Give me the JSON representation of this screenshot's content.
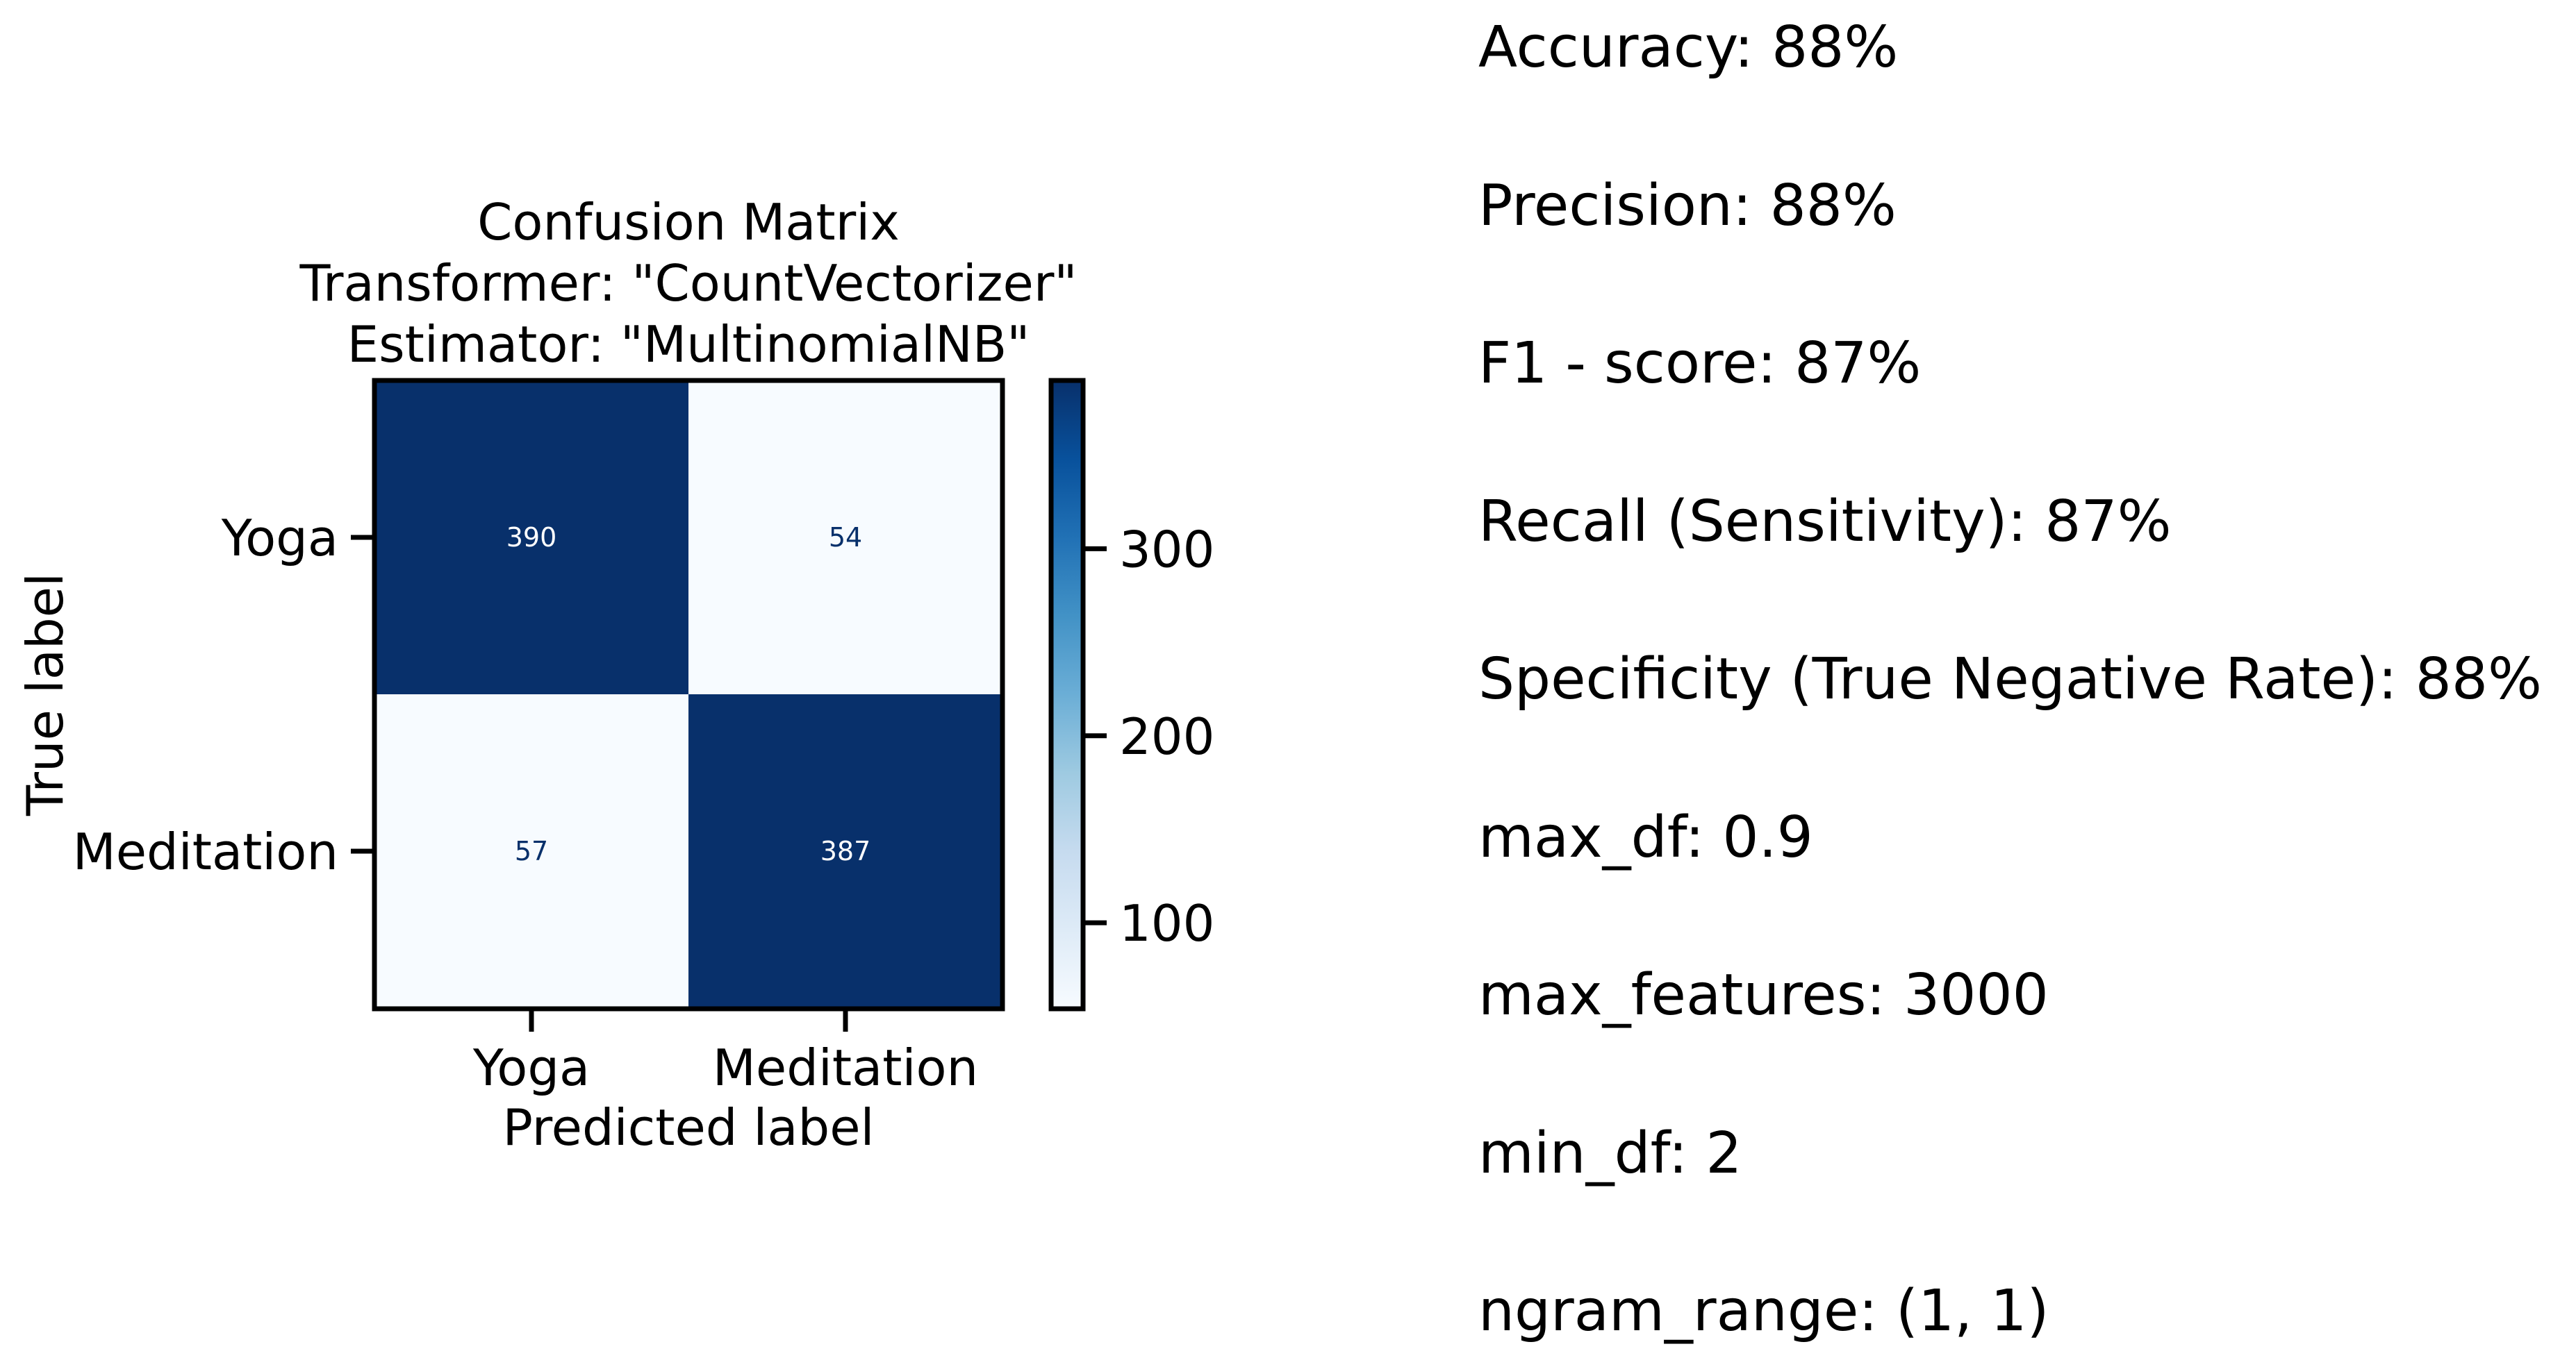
{
  "chart_data": {
    "type": "heatmap",
    "title_lines": [
      "Confusion Matrix",
      "Transformer: \"CountVectorizer\"",
      "Estimator: \"MultinomialNB\""
    ],
    "xlabel": "Predicted label",
    "ylabel": "True label",
    "x_categories": [
      "Yoga",
      "Meditation"
    ],
    "y_categories": [
      "Yoga",
      "Meditation"
    ],
    "matrix": [
      [
        390,
        54
      ],
      [
        57,
        387
      ]
    ],
    "colormap": "Blues",
    "colorbar": {
      "range": [
        54,
        390
      ],
      "ticks": [
        100,
        200,
        300
      ]
    }
  },
  "metrics": [
    "Accuracy: 88%",
    "Precision: 88%",
    "F1 - score: 87%",
    "Recall (Sensitivity): 87%",
    "Specificity (True Negative Rate): 88%",
    "max_df: 0.9",
    "max_features: 3000",
    "min_df: 2",
    "ngram_range: (1, 1)"
  ],
  "colors": {
    "dark": "#08306b",
    "light": "#f7fbff",
    "text_on_dark": "#ffffff",
    "text_on_light": "#08306b"
  }
}
